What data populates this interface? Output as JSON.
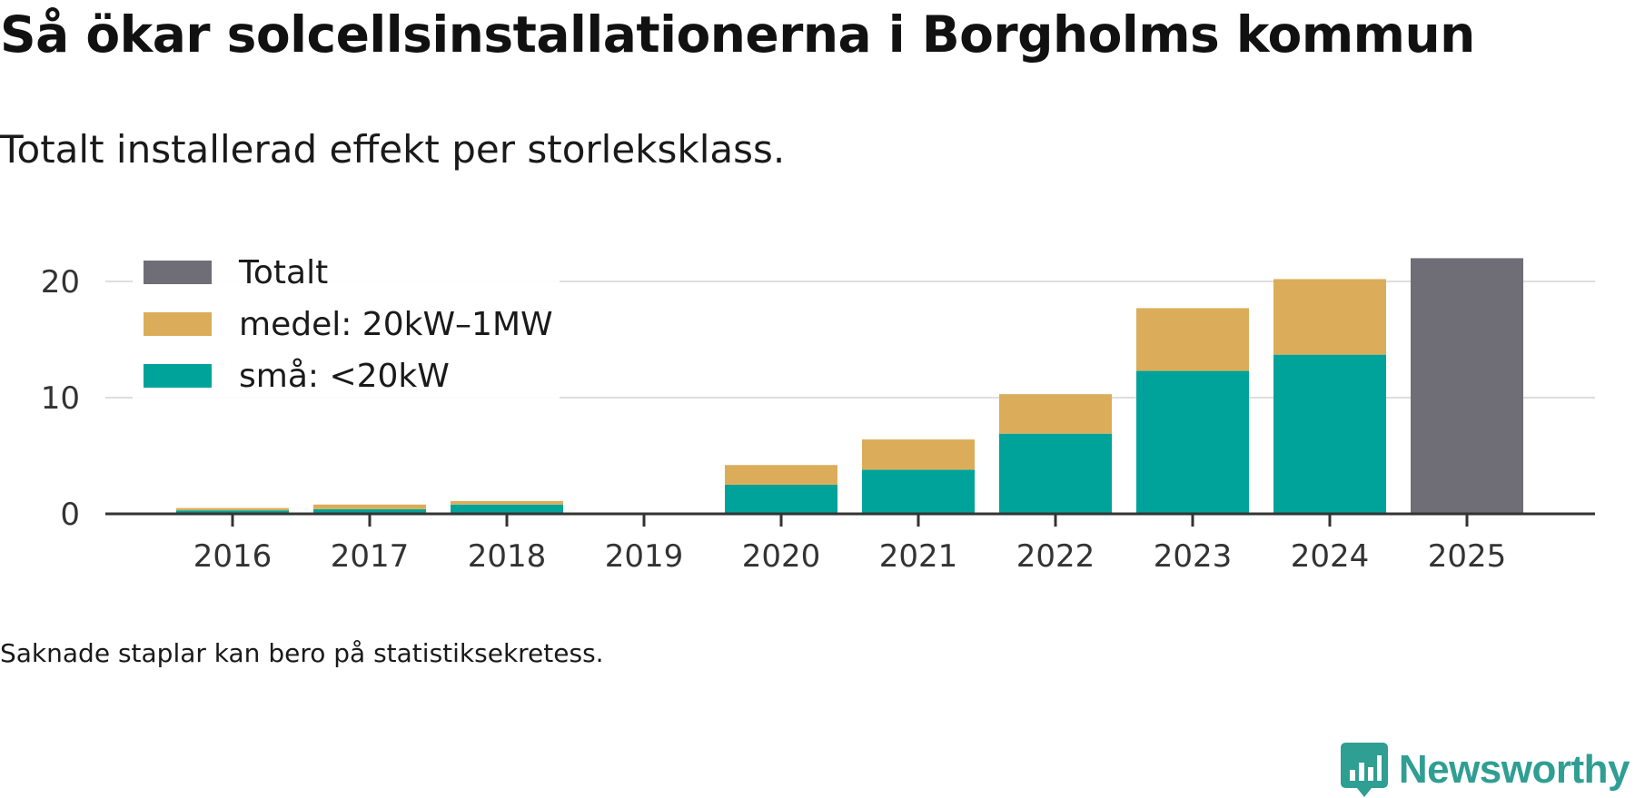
{
  "header": {
    "title": "Så ökar solcellsinstallationerna i Borgholms kommun",
    "subtitle": "Totalt installerad effekt per storleksklass."
  },
  "footer": {
    "note": "Saknade staplar kan bero på statistiksekretess.",
    "brand": "Newsworthy"
  },
  "colors": {
    "small": "#00a39a",
    "medium": "#dbad5a",
    "total": "#6f6e76",
    "brand": "#2f9e93"
  },
  "chart_data": {
    "type": "bar",
    "stacked": true,
    "title": "Så ökar solcellsinstallationerna i Borgholms kommun",
    "subtitle": "Totalt installerad effekt per storleksklass.",
    "xlabel": "",
    "ylabel": "",
    "ylim": [
      0,
      22
    ],
    "yticks": [
      0,
      10,
      20
    ],
    "grid": true,
    "legend_position": "top-left",
    "categories": [
      "2016",
      "2017",
      "2018",
      "2019",
      "2020",
      "2021",
      "2022",
      "2023",
      "2024",
      "2025"
    ],
    "series": [
      {
        "name": "små: <20kW",
        "color_key": "small",
        "values": [
          0.3,
          0.4,
          0.8,
          null,
          2.5,
          3.8,
          6.9,
          12.3,
          13.7,
          null
        ]
      },
      {
        "name": "medel: 20kW–1MW",
        "color_key": "medium",
        "values": [
          0.2,
          0.4,
          0.3,
          null,
          1.7,
          2.6,
          3.4,
          5.4,
          6.5,
          null
        ]
      },
      {
        "name": "Totalt",
        "color_key": "total",
        "values": [
          null,
          null,
          null,
          null,
          null,
          null,
          null,
          null,
          null,
          22.0
        ]
      }
    ],
    "legend": [
      {
        "label": "Totalt",
        "color_key": "total"
      },
      {
        "label": "medel: 20kW–1MW",
        "color_key": "medium"
      },
      {
        "label": "små: <20kW",
        "color_key": "small"
      }
    ]
  }
}
